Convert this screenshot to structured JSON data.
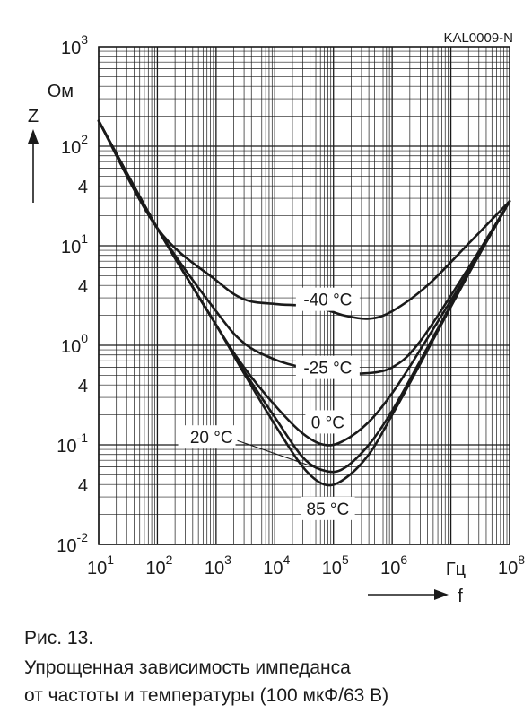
{
  "figure_code": "KAL0009-N",
  "caption": {
    "number": "Рис. 13.",
    "line1": "Упрощенная зависимость импеданса",
    "line2": "от частоты и температуры (100 мкФ/63 В)"
  },
  "chart_data": {
    "type": "line",
    "xlabel": "f",
    "xunit": "Гц",
    "ylabel": "Z",
    "yunit": "Ом",
    "x_scale": "log",
    "y_scale": "log",
    "xlim": [
      10,
      100000000
    ],
    "ylim": [
      0.01,
      1000
    ],
    "grid": true,
    "x_ticks": [
      {
        "base": "10",
        "exp": "1"
      },
      {
        "base": "10",
        "exp": "2"
      },
      {
        "base": "10",
        "exp": "3"
      },
      {
        "base": "10",
        "exp": "4"
      },
      {
        "base": "10",
        "exp": "5"
      },
      {
        "base": "10",
        "exp": "6"
      },
      {
        "base": "10",
        "exp": "8"
      }
    ],
    "y_ticks": [
      {
        "base": "10",
        "exp": "3"
      },
      {
        "base": "10",
        "exp": "2"
      },
      {
        "base": "4",
        "exp": ""
      },
      {
        "base": "10",
        "exp": "1"
      },
      {
        "base": "4",
        "exp": ""
      },
      {
        "base": "10",
        "exp": "0"
      },
      {
        "base": "4",
        "exp": ""
      },
      {
        "base": "10",
        "exp": "-1"
      },
      {
        "base": "4",
        "exp": ""
      },
      {
        "base": "10",
        "exp": "-2"
      }
    ],
    "series": [
      {
        "name": "-40 °C",
        "x": [
          10,
          100,
          1000,
          3000,
          10000,
          30000,
          70000,
          150000,
          400000,
          1000000,
          4000000,
          20000000,
          100000000
        ],
        "y": [
          180,
          15,
          4.5,
          2.9,
          2.6,
          2.5,
          2.3,
          2.0,
          1.85,
          2.2,
          4.0,
          10.5,
          28
        ]
      },
      {
        "name": "-25 °C",
        "x": [
          10,
          100,
          1000,
          3000,
          10000,
          30000,
          100000,
          300000,
          1000000,
          3000000,
          20000000,
          100000000
        ],
        "y": [
          180,
          15,
          2.2,
          1.05,
          0.72,
          0.6,
          0.55,
          0.52,
          0.6,
          1.1,
          6.0,
          28
        ]
      },
      {
        "name": "0 °C",
        "x": [
          10,
          100,
          1000,
          3000,
          10000,
          30000,
          70000,
          150000,
          400000,
          1000000,
          3000000,
          20000000,
          100000000
        ],
        "y": [
          180,
          15,
          1.6,
          0.6,
          0.25,
          0.13,
          0.1,
          0.11,
          0.17,
          0.33,
          0.9,
          5.5,
          28
        ]
      },
      {
        "name": "20 °C",
        "x": [
          10,
          100,
          1000,
          3000,
          10000,
          30000,
          70000,
          150000,
          400000,
          1000000,
          3000000,
          20000000,
          100000000
        ],
        "y": [
          180,
          15,
          1.6,
          0.55,
          0.19,
          0.075,
          0.055,
          0.058,
          0.1,
          0.22,
          0.7,
          5.3,
          28
        ]
      },
      {
        "name": "85 °C",
        "x": [
          10,
          100,
          1000,
          3000,
          10000,
          30000,
          70000,
          150000,
          400000,
          1000000,
          3000000,
          20000000,
          100000000
        ],
        "y": [
          180,
          15,
          1.6,
          0.52,
          0.16,
          0.06,
          0.04,
          0.045,
          0.08,
          0.2,
          0.65,
          5.2,
          28
        ]
      }
    ]
  }
}
